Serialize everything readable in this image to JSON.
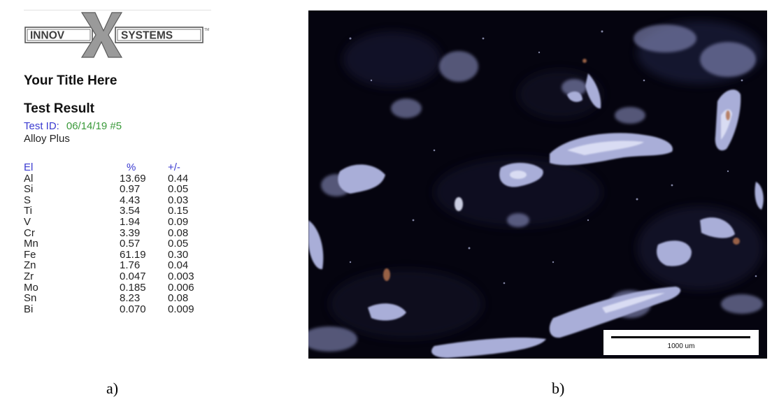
{
  "report": {
    "logo": {
      "left_text": "INNOV",
      "right_text": "SYSTEMS",
      "letter": "X",
      "trademark": "TM",
      "colors": {
        "outline": "#555555",
        "text": "#3d3d3d",
        "x_fill": "#9a9a9a",
        "x_edge": "#5a5a5a"
      }
    },
    "title": "Your Title Here",
    "section_title": "Test Result",
    "test_id_label": "Test ID:",
    "test_id_value": "06/14/19 #5",
    "mode": "Alloy Plus",
    "table": {
      "headers": {
        "element": "El",
        "percent": "%",
        "error": "+/-"
      },
      "rows": [
        {
          "element": "Al",
          "percent": "13.69",
          "error": "0.44"
        },
        {
          "element": "Si",
          "percent": "0.97",
          "error": "0.05"
        },
        {
          "element": "S",
          "percent": "4.43",
          "error": "0.03"
        },
        {
          "element": "Ti",
          "percent": "3.54",
          "error": "0.15"
        },
        {
          "element": "V",
          "percent": "1.94",
          "error": "0.09"
        },
        {
          "element": "Cr",
          "percent": "3.39",
          "error": "0.08"
        },
        {
          "element": "Mn",
          "percent": "0.57",
          "error": "0.05"
        },
        {
          "element": "Fe",
          "percent": "61.19",
          "error": "0.30"
        },
        {
          "element": "Zn",
          "percent": "1.76",
          "error": "0.04"
        },
        {
          "element": "Zr",
          "percent": "0.047",
          "error": "0.003"
        },
        {
          "element": "Mo",
          "percent": "0.185",
          "error": "0.006"
        },
        {
          "element": "Sn",
          "percent": "8.23",
          "error": "0.08"
        },
        {
          "element": "Bi",
          "percent": "0.070",
          "error": "0.009"
        }
      ]
    }
  },
  "micrograph": {
    "scale_label": "1000 um",
    "colors": {
      "background": "#05040f",
      "particles": "#a9aed8",
      "highlight": "#dfe2f6",
      "rust": "#b0704e"
    }
  },
  "captions": {
    "a": "a)",
    "b": "b)"
  }
}
